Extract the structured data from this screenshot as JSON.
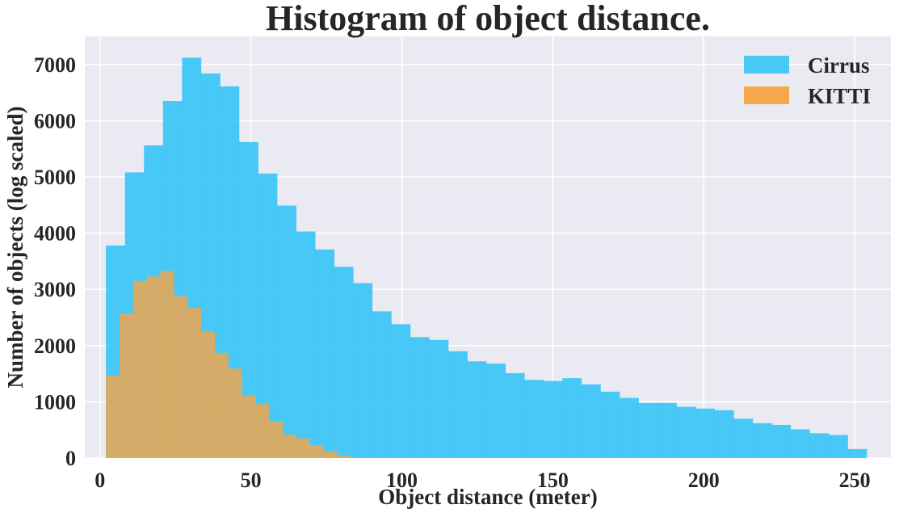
{
  "chart_data": {
    "type": "bar",
    "title": "Histogram of object distance.",
    "xlabel": "Object distance (meter)",
    "ylabel": "Number of objects (log scaled)",
    "xlim": [
      -5,
      262
    ],
    "ylim": [
      0,
      7500
    ],
    "xticks": [
      0,
      50,
      100,
      150,
      200,
      250
    ],
    "yticks": [
      0,
      1000,
      2000,
      3000,
      4000,
      5000,
      6000,
      7000
    ],
    "grid": true,
    "legend_position": "top-right",
    "series": [
      {
        "name": "Cirrus",
        "color": "#1fbff7",
        "bin_edges": [
          2.0,
          8.3,
          14.6,
          20.9,
          27.2,
          33.5,
          39.8,
          46.1,
          52.4,
          58.7,
          65.0,
          71.3,
          77.6,
          83.9,
          90.2,
          96.5,
          102.8,
          109.1,
          115.4,
          121.7,
          128.0,
          134.3,
          140.6,
          146.9,
          153.2,
          159.5,
          165.8,
          172.1,
          178.4,
          184.7,
          191.0,
          197.3,
          203.6,
          209.9,
          216.2,
          222.5,
          228.8,
          235.1,
          241.4,
          247.7,
          254.0
        ],
        "counts": [
          3780,
          5080,
          5560,
          6350,
          7120,
          6840,
          6610,
          5620,
          5060,
          4490,
          4030,
          3710,
          3400,
          3110,
          2610,
          2380,
          2150,
          2100,
          1900,
          1720,
          1680,
          1510,
          1390,
          1370,
          1420,
          1310,
          1180,
          1070,
          980,
          980,
          910,
          880,
          850,
          700,
          620,
          590,
          510,
          440,
          410,
          160
        ]
      },
      {
        "name": "KITTI",
        "color": "#f7a444",
        "bin_edges": [
          2.0,
          6.5,
          11.0,
          15.5,
          20.0,
          24.5,
          29.0,
          33.5,
          38.0,
          42.5,
          47.0,
          51.5,
          56.0,
          60.5,
          65.0,
          69.5,
          74.0,
          78.5,
          83.0
        ],
        "counts": [
          1470,
          2570,
          3150,
          3230,
          3330,
          2880,
          2670,
          2250,
          1870,
          1590,
          1110,
          960,
          650,
          420,
          350,
          230,
          120,
          40
        ]
      }
    ]
  }
}
